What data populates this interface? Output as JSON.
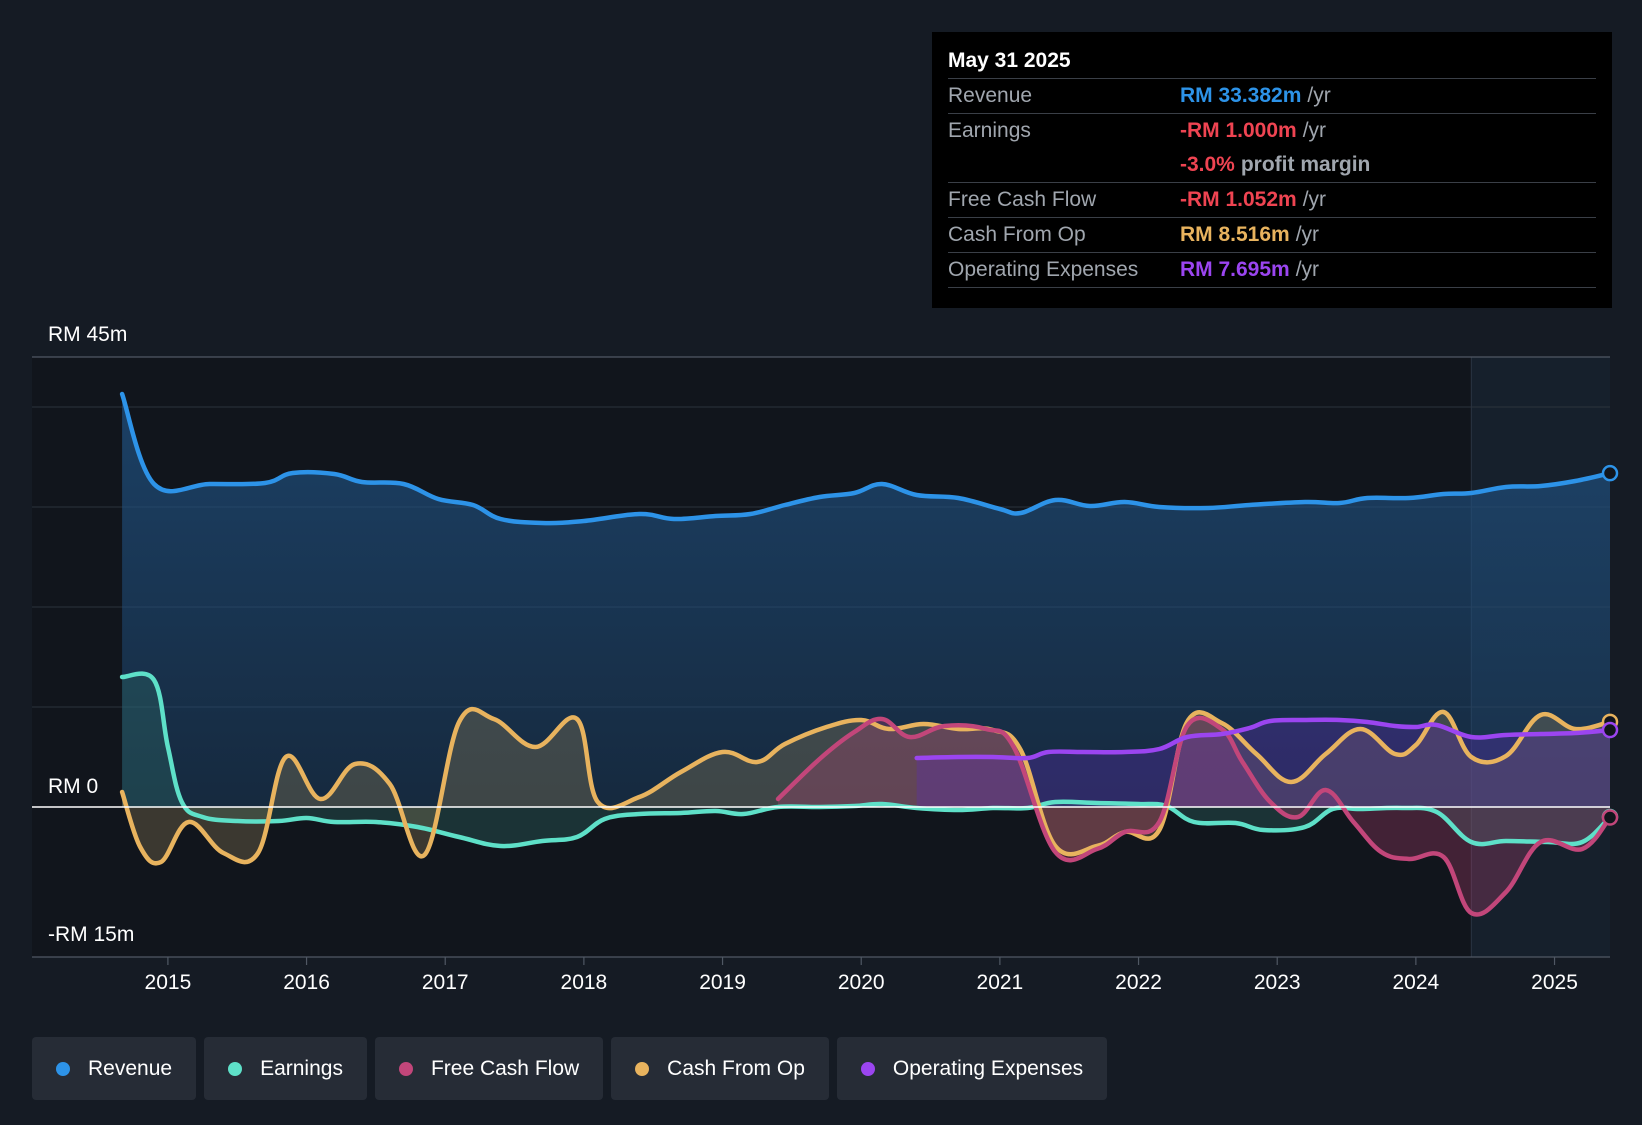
{
  "colors": {
    "revenue": "#2d93e8",
    "earnings": "#5ee0c8",
    "fcf": "#c2467a",
    "cfo": "#e8b35e",
    "opex": "#9b45f0",
    "negative": "#ef4452"
  },
  "tooltip": {
    "date": "May 31 2025",
    "rows": {
      "revenue": {
        "label": "Revenue",
        "value": "RM 33.382m",
        "unit": "/yr"
      },
      "earnings": {
        "label": "Earnings",
        "value": "-RM 1.000m",
        "unit": "/yr"
      },
      "margin": {
        "value": "-3.0%",
        "unit": "profit margin"
      },
      "fcf": {
        "label": "Free Cash Flow",
        "value": "-RM 1.052m",
        "unit": "/yr"
      },
      "cfo": {
        "label": "Cash From Op",
        "value": "RM 8.516m",
        "unit": "/yr"
      },
      "opex": {
        "label": "Operating Expenses",
        "value": "RM 7.695m",
        "unit": "/yr"
      }
    }
  },
  "legend": [
    {
      "label": "Revenue",
      "color": "#2d93e8"
    },
    {
      "label": "Earnings",
      "color": "#5ee0c8"
    },
    {
      "label": "Free Cash Flow",
      "color": "#c2467a"
    },
    {
      "label": "Cash From Op",
      "color": "#e8b35e"
    },
    {
      "label": "Operating Expenses",
      "color": "#9b45f0"
    }
  ],
  "chart_data": {
    "type": "area",
    "title": "",
    "ylim": [
      -15,
      45
    ],
    "y_tick_labels": [
      {
        "value": 45,
        "text": "RM 45m"
      },
      {
        "value": 0,
        "text": "RM 0"
      },
      {
        "value": -15,
        "text": "-RM 15m"
      }
    ],
    "x_ticks": [
      2015,
      2016,
      2017,
      2018,
      2019,
      2020,
      2021,
      2022,
      2023,
      2024,
      2025
    ],
    "xlim": [
      2014.02,
      2025.4
    ],
    "forecast_start": 2024.4,
    "series": [
      {
        "name": "Revenue",
        "key": "revenue",
        "x": [
          2014.67,
          2014.9,
          2015.3,
          2015.7,
          2015.9,
          2016.2,
          2016.4,
          2016.7,
          2016.95,
          2017.2,
          2017.4,
          2017.7,
          2018.0,
          2018.4,
          2018.65,
          2018.95,
          2019.2,
          2019.45,
          2019.7,
          2019.95,
          2020.15,
          2020.4,
          2020.7,
          2021.0,
          2021.15,
          2021.4,
          2021.65,
          2021.9,
          2022.15,
          2022.5,
          2022.8,
          2023.2,
          2023.45,
          2023.65,
          2023.95,
          2024.2,
          2024.4,
          2024.65,
          2024.9,
          2025.15,
          2025.4
        ],
        "y": [
          41.3,
          32.3,
          32.3,
          32.4,
          33.4,
          33.3,
          32.5,
          32.3,
          30.8,
          30.2,
          28.8,
          28.4,
          28.6,
          29.3,
          28.8,
          29.1,
          29.3,
          30.2,
          31.0,
          31.4,
          32.3,
          31.2,
          30.9,
          29.8,
          29.4,
          30.7,
          30.1,
          30.5,
          30.0,
          29.9,
          30.2,
          30.5,
          30.4,
          30.9,
          30.9,
          31.3,
          31.4,
          32.0,
          32.1,
          32.6,
          33.382
        ]
      },
      {
        "name": "Earnings",
        "key": "earnings",
        "x": [
          2014.67,
          2014.9,
          2015.0,
          2015.1,
          2015.25,
          2015.5,
          2015.8,
          2016.0,
          2016.2,
          2016.5,
          2016.8,
          2017.1,
          2017.4,
          2017.7,
          2017.95,
          2018.15,
          2018.4,
          2018.7,
          2018.95,
          2019.15,
          2019.4,
          2019.7,
          2019.95,
          2020.15,
          2020.4,
          2020.7,
          2020.95,
          2021.2,
          2021.4,
          2021.7,
          2022.0,
          2022.2,
          2022.4,
          2022.7,
          2022.9,
          2023.2,
          2023.4,
          2023.6,
          2023.9,
          2024.15,
          2024.4,
          2024.65,
          2024.95,
          2025.2,
          2025.4
        ],
        "y": [
          13.0,
          12.7,
          6.0,
          0.5,
          -1.0,
          -1.4,
          -1.4,
          -1.1,
          -1.5,
          -1.5,
          -2.0,
          -3.0,
          -3.9,
          -3.4,
          -3.0,
          -1.2,
          -0.7,
          -0.6,
          -0.4,
          -0.7,
          0.0,
          0.0,
          0.1,
          0.3,
          -0.1,
          -0.3,
          -0.1,
          -0.1,
          0.5,
          0.4,
          0.3,
          0.1,
          -1.5,
          -1.6,
          -2.3,
          -2.0,
          -0.2,
          -0.2,
          -0.1,
          -0.5,
          -3.5,
          -3.4,
          -3.5,
          -3.5,
          -1.0
        ]
      },
      {
        "name": "Free Cash Flow",
        "key": "fcf",
        "x": [
          2019.4,
          2019.7,
          2019.95,
          2020.15,
          2020.35,
          2020.6,
          2020.9,
          2021.1,
          2021.4,
          2021.7,
          2021.9,
          2022.15,
          2022.35,
          2022.6,
          2022.75,
          2022.95,
          2023.15,
          2023.35,
          2023.55,
          2023.75,
          2023.95,
          2024.2,
          2024.4,
          2024.65,
          2024.9,
          2025.2,
          2025.4
        ],
        "y": [
          0.8,
          4.8,
          7.5,
          8.8,
          7.0,
          8.1,
          7.8,
          6.0,
          -4.5,
          -4.2,
          -2.5,
          -1.5,
          8.1,
          7.8,
          4.5,
          0.5,
          -1.0,
          1.7,
          -1.5,
          -4.5,
          -5.2,
          -5.0,
          -10.6,
          -8.5,
          -3.5,
          -4.2,
          -1.052
        ]
      },
      {
        "name": "Cash From Op",
        "key": "cfo",
        "x": [
          2014.67,
          2014.8,
          2014.95,
          2015.15,
          2015.4,
          2015.65,
          2015.85,
          2016.1,
          2016.35,
          2016.6,
          2016.85,
          2017.1,
          2017.35,
          2017.65,
          2017.95,
          2018.1,
          2018.4,
          2018.7,
          2019.0,
          2019.25,
          2019.45,
          2019.75,
          2020.0,
          2020.2,
          2020.45,
          2020.7,
          2020.95,
          2021.15,
          2021.4,
          2021.7,
          2021.9,
          2022.15,
          2022.35,
          2022.6,
          2022.85,
          2023.1,
          2023.35,
          2023.6,
          2023.85,
          2024.0,
          2024.2,
          2024.4,
          2024.65,
          2024.9,
          2025.15,
          2025.4
        ],
        "y": [
          1.5,
          -4.0,
          -5.5,
          -1.5,
          -4.6,
          -4.6,
          5.0,
          0.8,
          4.3,
          2.3,
          -4.8,
          8.5,
          8.8,
          6.0,
          8.8,
          0.5,
          1.0,
          3.5,
          5.5,
          4.5,
          6.3,
          8.0,
          8.7,
          7.8,
          8.3,
          7.8,
          7.7,
          5.7,
          -3.9,
          -3.9,
          -2.5,
          -2.3,
          8.5,
          8.4,
          5.3,
          2.5,
          5.3,
          7.8,
          5.3,
          6.2,
          9.5,
          5.0,
          5.1,
          9.2,
          7.8,
          8.516
        ]
      },
      {
        "name": "Operating Expenses",
        "key": "opex",
        "x": [
          2020.4,
          2020.7,
          2020.95,
          2021.2,
          2021.35,
          2021.6,
          2021.9,
          2022.15,
          2022.35,
          2022.6,
          2022.8,
          2022.95,
          2023.2,
          2023.45,
          2023.65,
          2023.85,
          2024.0,
          2024.15,
          2024.4,
          2024.65,
          2024.9,
          2025.15,
          2025.4
        ],
        "y": [
          4.9,
          5.0,
          5.0,
          4.9,
          5.5,
          5.5,
          5.5,
          5.8,
          7.0,
          7.3,
          7.9,
          8.6,
          8.7,
          8.7,
          8.5,
          8.1,
          8.0,
          8.2,
          7.0,
          7.2,
          7.3,
          7.4,
          7.695
        ]
      }
    ]
  }
}
